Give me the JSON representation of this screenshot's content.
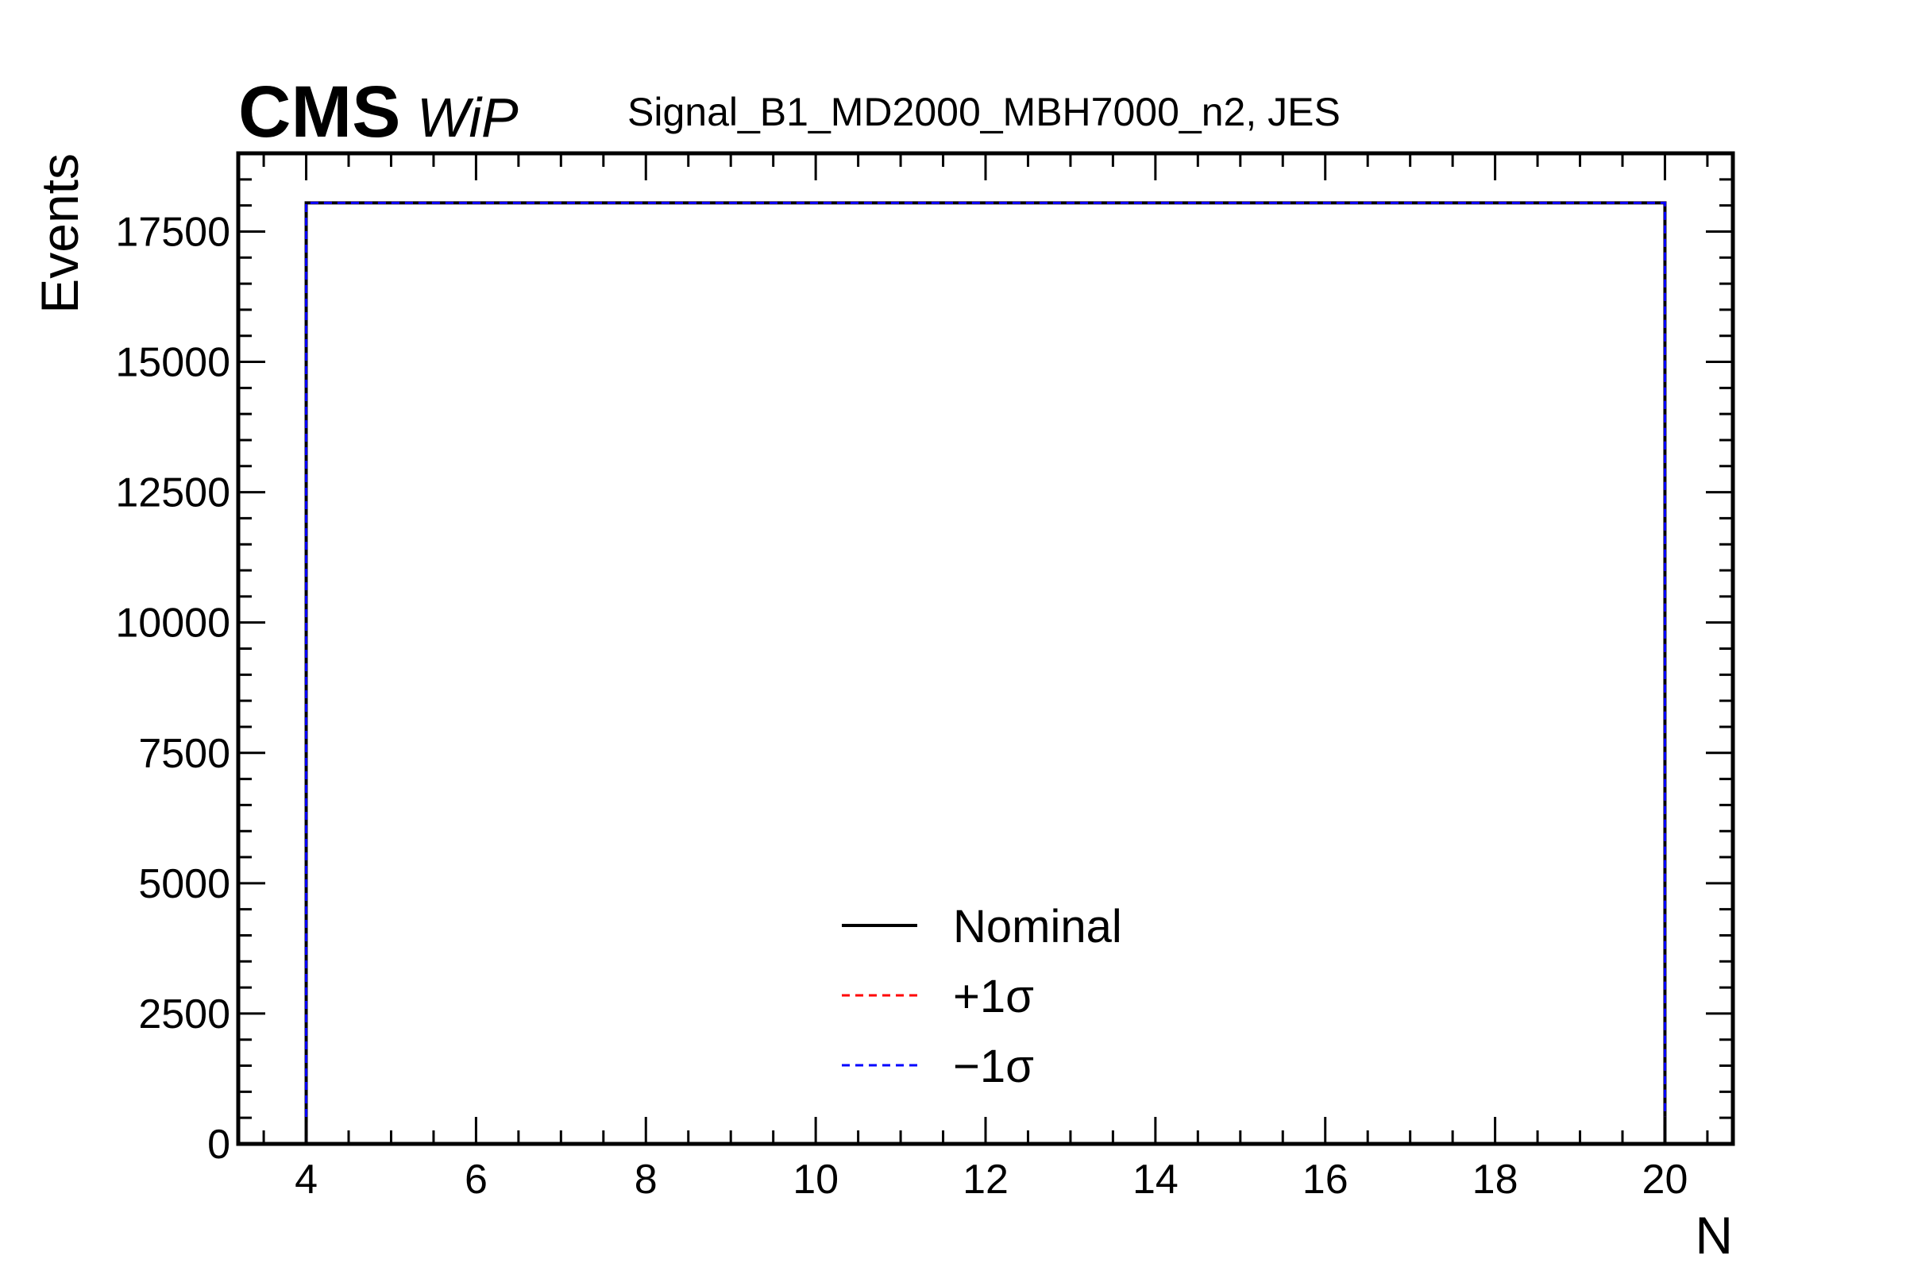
{
  "chart_data": {
    "type": "line",
    "drawstyle": "steps",
    "title": "Signal_B1_MD2000_MBH7000_n2, JES",
    "experiment_label": "CMS",
    "experiment_extra": "WiP",
    "xlabel": "N",
    "ylabel": "Events",
    "xlim": [
      3.2,
      20.8
    ],
    "ylim": [
      0,
      19000
    ],
    "x_ticks": [
      4,
      6,
      8,
      10,
      12,
      14,
      16,
      18,
      20
    ],
    "x_tick_labels": [
      "4",
      "6",
      "8",
      "10",
      "12",
      "14",
      "16",
      "18",
      "20"
    ],
    "y_ticks": [
      0,
      2500,
      5000,
      7500,
      10000,
      12500,
      15000,
      17500
    ],
    "y_tick_labels": [
      "0",
      "2500",
      "5000",
      "7500",
      "10000",
      "12500",
      "15000",
      "17500"
    ],
    "grid": false,
    "legend_position": "bottom-center",
    "series": [
      {
        "name": "Nominal",
        "bin_edges": [
          4,
          20
        ],
        "values": [
          18050
        ],
        "color": "#000000",
        "linestyle": "solid"
      },
      {
        "name": "+1σ",
        "bin_edges": [
          4,
          20
        ],
        "values": [
          18050
        ],
        "color": "#ff0000",
        "linestyle": "dashed"
      },
      {
        "name": "−1σ",
        "bin_edges": [
          4,
          20
        ],
        "values": [
          18050
        ],
        "color": "#0000ff",
        "linestyle": "dashed"
      }
    ]
  }
}
